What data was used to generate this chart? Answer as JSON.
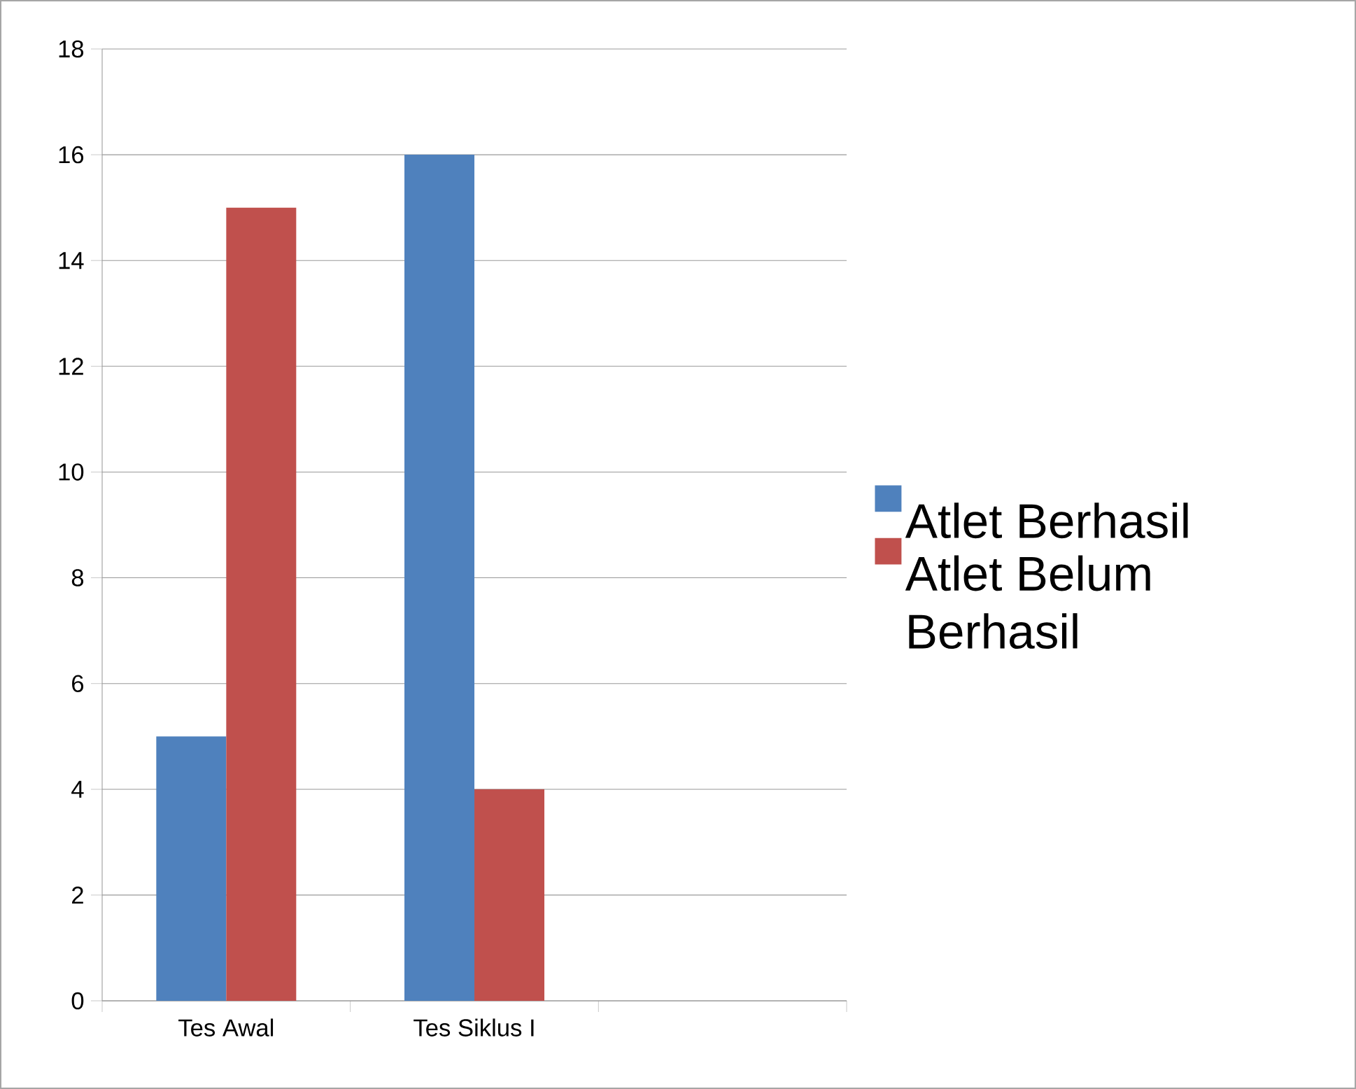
{
  "chart_data": {
    "type": "bar",
    "categories": [
      "Tes Awal",
      "Tes Siklus I",
      null
    ],
    "series": [
      {
        "name": "Atlet Berhasil",
        "color": "#4f81bd",
        "values": [
          5,
          16,
          null
        ]
      },
      {
        "name": "Atlet Belum Berhasil",
        "color": "#c0504d",
        "values": [
          15,
          4,
          null
        ]
      }
    ],
    "ylim": [
      0,
      18
    ],
    "yticks": [
      0,
      2,
      4,
      6,
      8,
      10,
      12,
      14,
      16,
      18
    ],
    "grid": "y",
    "legend": "right"
  }
}
